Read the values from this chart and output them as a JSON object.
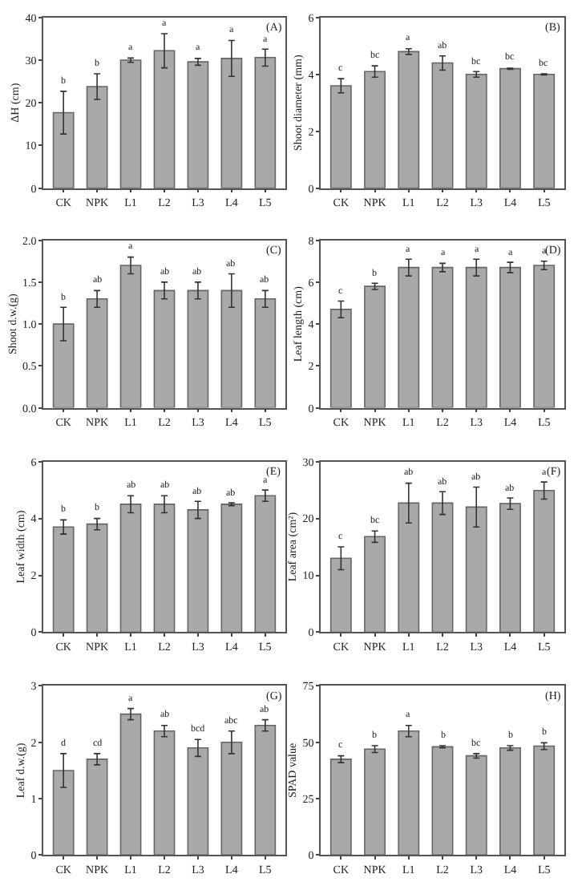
{
  "chart_data": [
    {
      "type": "bar",
      "title": "(A)",
      "ylabel": "ΔH (cm)",
      "categories": [
        "CK",
        "NPK",
        "L1",
        "L2",
        "L3",
        "L4",
        "L5"
      ],
      "values": [
        17.7,
        23.8,
        30.0,
        32.2,
        29.6,
        30.4,
        30.6
      ],
      "errors": [
        5,
        3,
        0.5,
        4,
        0.8,
        4.2,
        2
      ],
      "value_labels": [
        "b",
        "b",
        "a",
        "a",
        "a",
        "a",
        "a"
      ],
      "color": "#a9a9a9",
      "ylim": [
        0,
        40
      ],
      "yticks": [
        0,
        10,
        20,
        30,
        40
      ]
    },
    {
      "type": "bar",
      "title": "(B)",
      "ylabel": "Shoot diameter (mm)",
      "categories": [
        "CK",
        "NPK",
        "L1",
        "L2",
        "L3",
        "L4",
        "L5"
      ],
      "values": [
        3.6,
        4.1,
        4.8,
        4.4,
        4.0,
        4.2,
        4.0
      ],
      "errors": [
        0.25,
        0.2,
        0.1,
        0.25,
        0.1,
        0.02,
        0.02
      ],
      "value_labels": [
        "c",
        "bc",
        "a",
        "ab",
        "bc",
        "bc",
        "bc"
      ],
      "color": "#a9a9a9",
      "ylim": [
        0,
        6
      ],
      "yticks": [
        0,
        2,
        4,
        6
      ]
    },
    {
      "type": "bar",
      "title": "(C)",
      "ylabel": "Shoot d.w.(g)",
      "categories": [
        "CK",
        "NPK",
        "L1",
        "L2",
        "L3",
        "L4",
        "L5"
      ],
      "values": [
        1.0,
        1.3,
        1.7,
        1.4,
        1.4,
        1.4,
        1.3
      ],
      "errors": [
        0.2,
        0.1,
        0.1,
        0.1,
        0.1,
        0.2,
        0.1
      ],
      "value_labels": [
        "b",
        "ab",
        "a",
        "ab",
        "ab",
        "ab",
        "ab"
      ],
      "color": "#a9a9a9",
      "ylim": [
        0,
        2.0
      ],
      "yticks": [
        {
          "value": 0,
          "label": "0.0"
        },
        0.5,
        {
          "value": 1,
          "label": "1.0"
        },
        1.5,
        {
          "value": 2,
          "label": "2.0"
        }
      ]
    },
    {
      "type": "bar",
      "title": "(D)",
      "ylabel": "Leaf length (cm)",
      "categories": [
        "CK",
        "NPK",
        "L1",
        "L2",
        "L3",
        "L4",
        "L5"
      ],
      "values": [
        4.7,
        5.8,
        6.7,
        6.7,
        6.7,
        6.7,
        6.8
      ],
      "errors": [
        0.4,
        0.15,
        0.4,
        0.2,
        0.4,
        0.25,
        0.2
      ],
      "value_labels": [
        "c",
        "b",
        "a",
        "a",
        "a",
        "a",
        "a"
      ],
      "color": "#a9a9a9",
      "ylim": [
        0,
        8
      ],
      "yticks": [
        0,
        2,
        4,
        6,
        8
      ]
    },
    {
      "type": "bar",
      "title": "(E)",
      "ylabel": "Leaf width (cm)",
      "categories": [
        "CK",
        "NPK",
        "L1",
        "L2",
        "L3",
        "L4",
        "L5"
      ],
      "values": [
        3.7,
        3.8,
        4.5,
        4.5,
        4.3,
        4.5,
        4.8
      ],
      "errors": [
        0.25,
        0.2,
        0.3,
        0.3,
        0.3,
        0.05,
        0.2
      ],
      "value_labels": [
        "b",
        "b",
        "ab",
        "ab",
        "ab",
        "ab",
        "a"
      ],
      "color": "#a9a9a9",
      "ylim": [
        0,
        6
      ],
      "yticks": [
        0,
        2,
        4,
        6
      ]
    },
    {
      "type": "bar",
      "title": "(F)",
      "ylabel": "Leaf area (cm²)",
      "categories": [
        "CK",
        "NPK",
        "L1",
        "L2",
        "L3",
        "L4",
        "L5"
      ],
      "values": [
        13,
        16.8,
        22.7,
        22.7,
        22,
        22.6,
        24.9
      ],
      "errors": [
        2,
        1,
        3.5,
        2,
        3.5,
        1,
        1.5
      ],
      "value_labels": [
        "c",
        "bc",
        "ab",
        "ab",
        "ab",
        "ab",
        "a"
      ],
      "color": "#a9a9a9",
      "ylim": [
        0,
        30
      ],
      "yticks": [
        0,
        10,
        20,
        30
      ]
    },
    {
      "type": "bar",
      "title": "(G)",
      "ylabel": "Leaf d.w.(g)",
      "categories": [
        "CK",
        "NPK",
        "L1",
        "L2",
        "L3",
        "L4",
        "L5"
      ],
      "values": [
        1.5,
        1.7,
        2.5,
        2.2,
        1.9,
        2.0,
        2.3
      ],
      "errors": [
        0.3,
        0.1,
        0.1,
        0.1,
        0.15,
        0.2,
        0.1
      ],
      "value_labels": [
        "d",
        "cd",
        "a",
        "ab",
        "bcd",
        "abc",
        "ab"
      ],
      "color": "#a9a9a9",
      "ylim": [
        0,
        3
      ],
      "yticks": [
        0,
        1,
        2,
        3
      ]
    },
    {
      "type": "bar",
      "title": "(H)",
      "ylabel": "SPAD value",
      "categories": [
        "CK",
        "NPK",
        "L1",
        "L2",
        "L3",
        "L4",
        "L5"
      ],
      "values": [
        42.5,
        47,
        55,
        48,
        44,
        47.5,
        48.3
      ],
      "errors": [
        1.5,
        1.5,
        2.5,
        0.5,
        1,
        1,
        1.5
      ],
      "value_labels": [
        "c",
        "b",
        "a",
        "b",
        "bc",
        "b",
        "b"
      ],
      "color": "#a9a9a9",
      "ylim": [
        0,
        75
      ],
      "yticks": [
        0,
        25,
        50,
        75
      ]
    }
  ]
}
